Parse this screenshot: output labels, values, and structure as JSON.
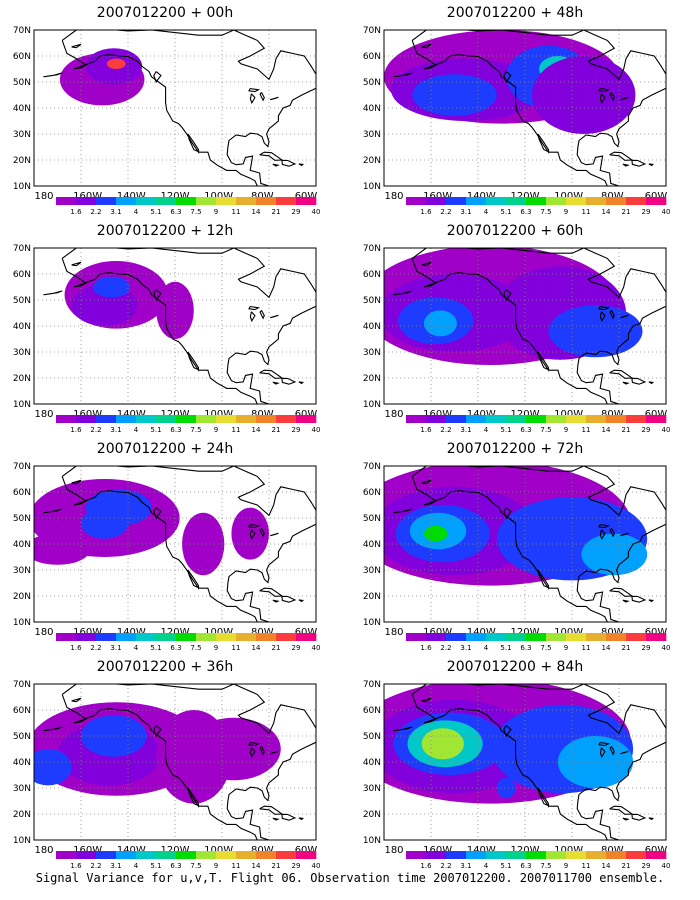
{
  "panels": [
    {
      "title": "2007012200 + 00h",
      "level": 0
    },
    {
      "title": "2007012200 + 12h",
      "level": 1
    },
    {
      "title": "2007012200 + 24h",
      "level": 2
    },
    {
      "title": "2007012200 + 36h",
      "level": 3
    },
    {
      "title": "2007012200 + 48h",
      "level": 4
    },
    {
      "title": "2007012200 + 60h",
      "level": 5
    },
    {
      "title": "2007012200 + 72h",
      "level": 6
    },
    {
      "title": "2007012200 + 84h",
      "level": 7
    }
  ],
  "lon_labels": [
    "180",
    "160W",
    "140W",
    "120W",
    "100W",
    "80W",
    "60W"
  ],
  "lat_labels": [
    "10N",
    "20N",
    "30N",
    "40N",
    "50N",
    "60N",
    "70N"
  ],
  "colorbar": {
    "labels": [
      "1.6",
      "2.2",
      "3.1",
      "4",
      "5.1",
      "6.3",
      "7.5",
      "9",
      "11",
      "14",
      "21",
      "29",
      "40"
    ],
    "colors": [
      "#a000c8",
      "#8200dc",
      "#1e3cff",
      "#00a0ff",
      "#00c8c8",
      "#00d28c",
      "#00dc00",
      "#a0e632",
      "#e6dc32",
      "#e6af2d",
      "#f08228",
      "#fa3c3c",
      "#f00082"
    ]
  },
  "footer": "Signal Variance for u,v,T. Flight 06. Observation time 2007012200. 2007011700 ensemble."
}
